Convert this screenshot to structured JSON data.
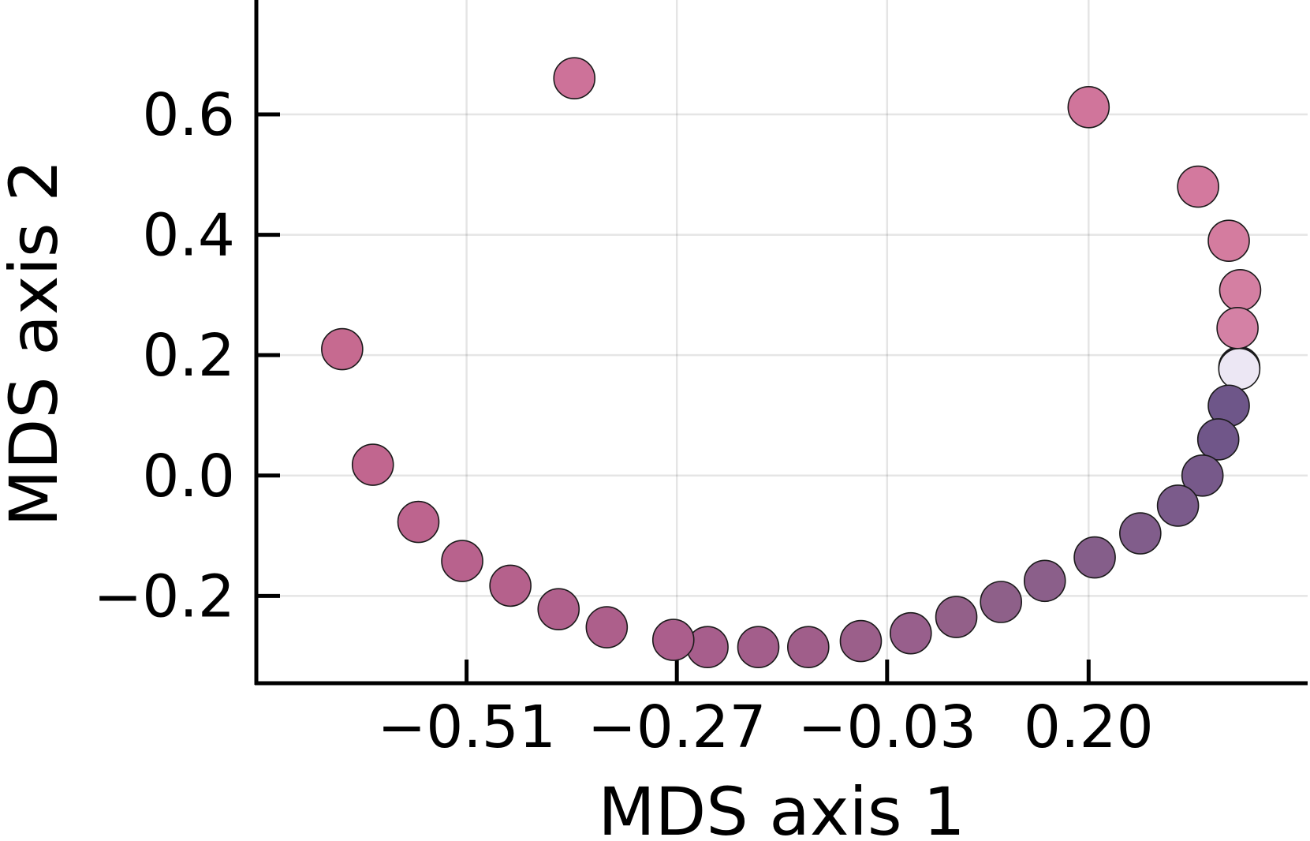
{
  "chart_data": {
    "type": "scatter",
    "title": "",
    "xlabel": "MDS axis 1",
    "ylabel": "MDS axis 2",
    "xlim": [
      -0.75,
      0.45
    ],
    "ylim": [
      -0.345,
      0.79
    ],
    "x_ticks": [
      -0.51,
      -0.27,
      -0.03,
      0.2
    ],
    "x_tick_labels": [
      "−0.51",
      "−0.27",
      "−0.03",
      "0.20"
    ],
    "y_ticks": [
      -0.2,
      0.0,
      0.2,
      0.4,
      0.6
    ],
    "y_tick_labels": [
      "−0.2",
      "0.0",
      "0.2",
      "0.4",
      "0.6"
    ],
    "grid": true,
    "legend": "none",
    "series": [
      {
        "points": [
          {
            "x": 0.372,
            "y": 0.18,
            "color": "#1f1233"
          },
          {
            "x": 0.372,
            "y": 0.177,
            "color": "#ece7f4"
          },
          {
            "x": 0.36,
            "y": 0.116,
            "color": "#6e5689"
          },
          {
            "x": 0.348,
            "y": 0.06,
            "color": "#705689"
          },
          {
            "x": 0.33,
            "y": 0.0,
            "color": "#77598a"
          },
          {
            "x": 0.302,
            "y": -0.05,
            "color": "#7b5b8b"
          },
          {
            "x": 0.259,
            "y": -0.096,
            "color": "#815d8b"
          },
          {
            "x": 0.207,
            "y": -0.136,
            "color": "#855e8a"
          },
          {
            "x": 0.15,
            "y": -0.175,
            "color": "#8b5f8a"
          },
          {
            "x": 0.1,
            "y": -0.21,
            "color": "#8e6089"
          },
          {
            "x": 0.049,
            "y": -0.235,
            "color": "#936089"
          },
          {
            "x": -0.003,
            "y": -0.262,
            "color": "#985f8c"
          },
          {
            "x": -0.06,
            "y": -0.275,
            "color": "#9b5f8a"
          },
          {
            "x": -0.12,
            "y": -0.285,
            "color": "#a05e8a"
          },
          {
            "x": -0.177,
            "y": -0.285,
            "color": "#a35e8b"
          },
          {
            "x": -0.235,
            "y": -0.285,
            "color": "#a75e8c"
          },
          {
            "x": -0.274,
            "y": -0.273,
            "color": "#ab5e8c"
          },
          {
            "x": -0.35,
            "y": -0.252,
            "color": "#ad5f8b"
          },
          {
            "x": -0.405,
            "y": -0.222,
            "color": "#b0608c"
          },
          {
            "x": -0.46,
            "y": -0.183,
            "color": "#b5618c"
          },
          {
            "x": -0.515,
            "y": -0.142,
            "color": "#b8628d"
          },
          {
            "x": -0.565,
            "y": -0.077,
            "color": "#bd648e"
          },
          {
            "x": -0.617,
            "y": 0.018,
            "color": "#c1668f"
          },
          {
            "x": -0.652,
            "y": 0.21,
            "color": "#c66a90"
          },
          {
            "x": -0.387,
            "y": 0.66,
            "color": "#cd7299"
          },
          {
            "x": 0.2,
            "y": 0.612,
            "color": "#d0759b"
          },
          {
            "x": 0.325,
            "y": 0.48,
            "color": "#d3799e"
          },
          {
            "x": 0.36,
            "y": 0.39,
            "color": "#d47c9f"
          },
          {
            "x": 0.373,
            "y": 0.308,
            "color": "#d47fa2"
          },
          {
            "x": 0.37,
            "y": 0.245,
            "color": "#d481a5"
          }
        ]
      }
    ]
  }
}
